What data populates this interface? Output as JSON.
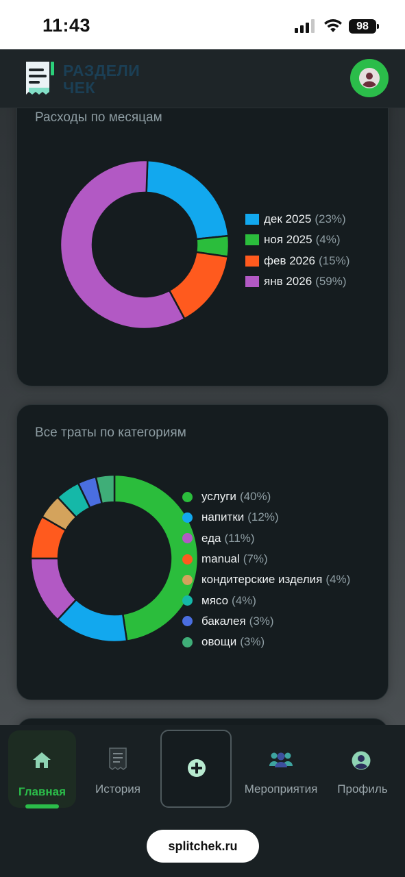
{
  "status_bar": {
    "time": "11:43",
    "battery": "98"
  },
  "header": {
    "logo_line1": "РАЗДЕЛИ",
    "logo_line2": "ЧЕК"
  },
  "monthly_card": {
    "title": "Расходы по месяцам",
    "legend": [
      {
        "label": "дек 2025",
        "pct": "(23%)",
        "color": "#12a8ee"
      },
      {
        "label": "ноя 2025",
        "pct": "(4%)",
        "color": "#2bbd3c"
      },
      {
        "label": "фев 2026",
        "pct": "(15%)",
        "color": "#ff5a1e"
      },
      {
        "label": "янв 2026",
        "pct": "(59%)",
        "color": "#b259c4"
      }
    ]
  },
  "category_card": {
    "title": "Все траты по категориям",
    "legend": [
      {
        "label": "услуги",
        "pct": "(40%)",
        "color": "#2bbd3c"
      },
      {
        "label": "напитки",
        "pct": "(12%)",
        "color": "#12a8ee"
      },
      {
        "label": "еда",
        "pct": "(11%)",
        "color": "#b259c4"
      },
      {
        "label": "manual",
        "pct": "(7%)",
        "color": "#ff5a1e"
      },
      {
        "label": "кондитерские изделия",
        "pct": "(4%)",
        "color": "#d4a35c"
      },
      {
        "label": "мясо",
        "pct": "(4%)",
        "color": "#15b8a8"
      },
      {
        "label": "бакалея",
        "pct": "(3%)",
        "color": "#4a6ee0"
      },
      {
        "label": "овощи",
        "pct": "(3%)",
        "color": "#3fae78"
      }
    ]
  },
  "chart_data": [
    {
      "type": "pie",
      "title": "Расходы по месяцам",
      "categories": [
        "дек 2025",
        "ноя 2025",
        "фев 2026",
        "янв 2026"
      ],
      "values": [
        23,
        4,
        15,
        59
      ],
      "colors": [
        "#12a8ee",
        "#2bbd3c",
        "#ff5a1e",
        "#b259c4"
      ],
      "legend_position": "right"
    },
    {
      "type": "pie",
      "title": "Все траты по категориям",
      "categories": [
        "услуги",
        "напитки",
        "еда",
        "manual",
        "кондитерские изделия",
        "мясо",
        "бакалея",
        "овощи"
      ],
      "values": [
        40,
        12,
        11,
        7,
        4,
        4,
        3,
        3
      ],
      "colors": [
        "#2bbd3c",
        "#12a8ee",
        "#b259c4",
        "#ff5a1e",
        "#d4a35c",
        "#15b8a8",
        "#4a6ee0",
        "#3fae78"
      ],
      "legend_position": "right"
    }
  ],
  "nav": {
    "home": "Главная",
    "history": "История",
    "events": "Мероприятия",
    "profile": "Профиль"
  },
  "url": "splitchek.ru"
}
